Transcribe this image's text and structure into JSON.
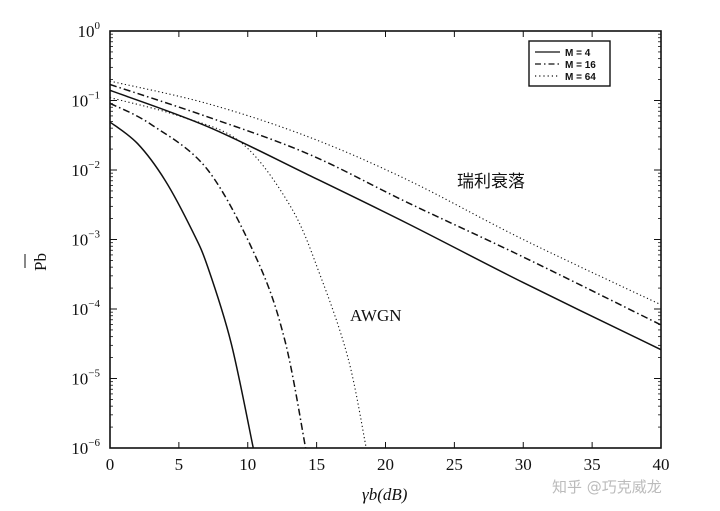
{
  "chart_data": {
    "type": "line",
    "title": "",
    "xlabel": "γb(dB)",
    "ylabel": "Pb",
    "xlim": [
      0,
      40
    ],
    "ylim": [
      1e-06,
      1
    ],
    "yscale": "log",
    "grid": false,
    "legend_placement": "top-right",
    "xticks": [
      "0",
      "5",
      "10",
      "15",
      "20",
      "25",
      "30",
      "35",
      "40"
    ],
    "yticks": [
      {
        "base": "10",
        "exp": "0"
      },
      {
        "base": "10",
        "exp": "−1"
      },
      {
        "base": "10",
        "exp": "−2"
      },
      {
        "base": "10",
        "exp": "−3"
      },
      {
        "base": "10",
        "exp": "−4"
      },
      {
        "base": "10",
        "exp": "−5"
      },
      {
        "base": "10",
        "exp": "−6"
      }
    ],
    "legend": [
      {
        "name": "M = 4",
        "style": "solid"
      },
      {
        "name": "M = 16",
        "style": "dashdot"
      },
      {
        "name": "M = 64",
        "style": "dotted"
      }
    ],
    "annotations": {
      "rayleigh": "瑞利衰落",
      "awgn": "AWGN"
    },
    "series": [
      {
        "group": "rayleigh",
        "name": "M = 4",
        "style": "solid",
        "x": [
          0,
          7.1,
          14.4,
          21.6,
          30,
          40
        ],
        "y": [
          0.14,
          0.042,
          0.0085,
          0.0017,
          0.00024,
          2.6e-05
        ]
      },
      {
        "group": "rayleigh",
        "name": "M = 16",
        "style": "dashdot",
        "x": [
          0,
          7.1,
          14.4,
          21.6,
          30,
          40
        ],
        "y": [
          0.17,
          0.058,
          0.017,
          0.0034,
          0.00056,
          5.9e-05
        ]
      },
      {
        "group": "rayleigh",
        "name": "M = 64",
        "style": "dotted",
        "x": [
          0,
          7.1,
          14.4,
          21.6,
          30,
          40
        ],
        "y": [
          0.19,
          0.09,
          0.03,
          0.0072,
          0.001,
          0.000115
        ]
      },
      {
        "group": "awgn",
        "name": "M = 4",
        "style": "solid",
        "x": [
          0,
          2,
          4,
          6,
          7.1,
          8.8,
          10.4
        ],
        "y": [
          0.049,
          0.024,
          0.0071,
          0.0013,
          0.0004,
          3.2e-05,
          1e-06
        ]
      },
      {
        "group": "awgn",
        "name": "M = 16",
        "style": "dashdot",
        "x": [
          0,
          3,
          7.1,
          10.7,
          12.7,
          14.2
        ],
        "y": [
          0.091,
          0.045,
          0.01,
          0.0005,
          3.5e-05,
          1e-06
        ]
      },
      {
        "group": "awgn",
        "name": "M = 64",
        "style": "dotted",
        "x": [
          0,
          5,
          9.5,
          13.1,
          15.3,
          17.3,
          18.6
        ],
        "y": [
          0.11,
          0.06,
          0.025,
          0.003,
          0.00029,
          1.9e-05,
          1e-06
        ]
      }
    ]
  },
  "watermark": "知乎 @巧克威龙"
}
